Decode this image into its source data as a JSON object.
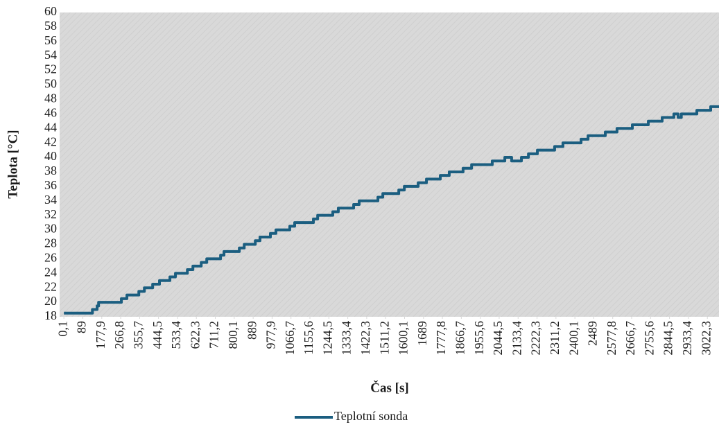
{
  "chart_data": {
    "type": "line",
    "x_title": "Čas [s]",
    "y_title": "Teplota [°C]",
    "x": [
      0.1,
      134,
      134,
      156,
      156,
      163,
      163,
      270,
      270,
      296,
      296,
      352,
      352,
      378,
      378,
      417,
      417,
      449,
      449,
      498,
      498,
      524,
      524,
      580,
      580,
      606,
      606,
      645,
      645,
      671,
      671,
      736,
      736,
      752,
      752,
      824,
      824,
      847,
      847,
      899,
      899,
      921,
      921,
      970,
      970,
      996,
      996,
      1061,
      1061,
      1084,
      1084,
      1172,
      1172,
      1192,
      1192,
      1263,
      1263,
      1289,
      1289,
      1361,
      1361,
      1387,
      1387,
      1475,
      1475,
      1498,
      1498,
      1573,
      1573,
      1599,
      1599,
      1664,
      1664,
      1703,
      1703,
      1768,
      1768,
      1810,
      1810,
      1875,
      1875,
      1915,
      1915,
      2012,
      2012,
      2071,
      2071,
      2103,
      2103,
      2149,
      2149,
      2182,
      2182,
      2224,
      2224,
      2305,
      2305,
      2344,
      2344,
      2429,
      2429,
      2462,
      2462,
      2543,
      2543,
      2598,
      2598,
      2670,
      2670,
      2745,
      2745,
      2810,
      2810,
      2865,
      2865,
      2885,
      2885,
      2900,
      2900,
      2973,
      2973,
      3038,
      3038,
      3077
    ],
    "series": [
      {
        "name": "Teplotní sonda",
        "color": "#1b5e80",
        "values": [
          18.5,
          18.5,
          19,
          19,
          19.5,
          19.5,
          20,
          20,
          20.5,
          20.5,
          21,
          21,
          21.5,
          21.5,
          22,
          22,
          22.5,
          22.5,
          23,
          23,
          23.5,
          23.5,
          24,
          24,
          24.5,
          24.5,
          25,
          25,
          25.5,
          25.5,
          26,
          26,
          26.5,
          26.5,
          27,
          27,
          27.5,
          27.5,
          28,
          28,
          28.5,
          28.5,
          29,
          29,
          29.5,
          29.5,
          30,
          30,
          30.5,
          30.5,
          31,
          31,
          31.5,
          31.5,
          32,
          32,
          32.5,
          32.5,
          33,
          33,
          33.5,
          33.5,
          34,
          34,
          34.5,
          34.5,
          35,
          35,
          35.5,
          35.5,
          36,
          36,
          36.5,
          36.5,
          37,
          37,
          37.5,
          37.5,
          38,
          38,
          38.5,
          38.5,
          39,
          39,
          39.5,
          39.5,
          40,
          40,
          39.5,
          39.5,
          40,
          40,
          40.5,
          40.5,
          41,
          41,
          41.5,
          41.5,
          42,
          42,
          42.5,
          42.5,
          43,
          43,
          43.5,
          43.5,
          44,
          44,
          44.5,
          44.5,
          45,
          45,
          45.5,
          45.5,
          46,
          46,
          45.5,
          45.5,
          46,
          46,
          46.5,
          46.5,
          47,
          47
        ]
      }
    ],
    "xlim": [
      -20,
      3077
    ],
    "xticks": [
      {
        "value": 0.1,
        "label": "0,1"
      },
      89,
      {
        "value": 177.9,
        "label": "177,9"
      },
      {
        "value": 266.8,
        "label": "266,8"
      },
      {
        "value": 355.7,
        "label": "355,7"
      },
      {
        "value": 444.5,
        "label": "444,5"
      },
      {
        "value": 533.4,
        "label": "533,4"
      },
      {
        "value": 622.3,
        "label": "622,3"
      },
      {
        "value": 711.2,
        "label": "711,2"
      },
      {
        "value": 800.1,
        "label": "800,1"
      },
      889,
      {
        "value": 977.9,
        "label": "977,9"
      },
      {
        "value": 1066.7,
        "label": "1066,7"
      },
      {
        "value": 1155.6,
        "label": "1155,6"
      },
      {
        "value": 1244.5,
        "label": "1244,5"
      },
      {
        "value": 1333.4,
        "label": "1333,4"
      },
      {
        "value": 1422.3,
        "label": "1422,3"
      },
      {
        "value": 1511.2,
        "label": "1511,2"
      },
      {
        "value": 1600.1,
        "label": "1600,1"
      },
      1689,
      {
        "value": 1777.8,
        "label": "1777,8"
      },
      {
        "value": 1866.7,
        "label": "1866,7"
      },
      {
        "value": 1955.6,
        "label": "1955,6"
      },
      {
        "value": 2044.5,
        "label": "2044,5"
      },
      {
        "value": 2133.4,
        "label": "2133,4"
      },
      {
        "value": 2222.3,
        "label": "2222,3"
      },
      {
        "value": 2311.2,
        "label": "2311,2"
      },
      {
        "value": 2400.1,
        "label": "2400,1"
      },
      2489,
      {
        "value": 2577.8,
        "label": "2577,8"
      },
      {
        "value": 2666.7,
        "label": "2666,7"
      },
      {
        "value": 2755.6,
        "label": "2755,6"
      },
      {
        "value": 2844.5,
        "label": "2844,5"
      },
      {
        "value": 2933.4,
        "label": "2933,4"
      },
      {
        "value": 3022.3,
        "label": "3022,3"
      }
    ],
    "ylim": [
      18,
      60
    ],
    "yticks": [
      18,
      20,
      22,
      24,
      26,
      28,
      30,
      32,
      34,
      36,
      38,
      40,
      42,
      44,
      46,
      48,
      50,
      52,
      54,
      56,
      58,
      60
    ],
    "grid": false,
    "legend": "bottom"
  }
}
